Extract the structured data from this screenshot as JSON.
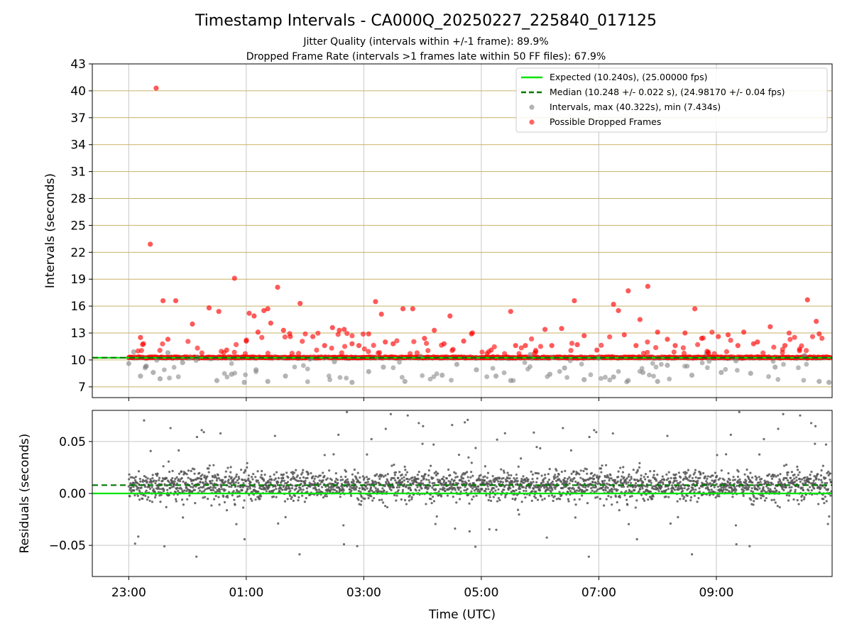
{
  "title": "Timestamp Intervals - CA000Q_20250227_225840_017125",
  "subtitle_1": "Jitter Quality (intervals within +/-1 frame): 89.9%",
  "subtitle_2": "Dropped Frame Rate (intervals >1 frames late within 50 FF files): 67.9%",
  "colors": {
    "expected": "#00e400",
    "median": "#007a00",
    "intervals": "#808080",
    "dropped": "#ff0000",
    "hgrid_top": "#c8b266",
    "grid": "#c8c8c8",
    "residuals": "#555555"
  },
  "chart_data": [
    {
      "type": "scatter",
      "panel": "top",
      "ylabel": "Intervals (seconds)",
      "ylim": [
        5.8,
        43
      ],
      "yticks": [
        7,
        10,
        13,
        16,
        19,
        22,
        25,
        28,
        31,
        34,
        37,
        40,
        43
      ],
      "xlim_hours": [
        22.38,
        10.97
      ],
      "grid": true,
      "legend_position": "top-right",
      "expected_value": 10.24,
      "median_value": 10.248,
      "legend": {
        "expected": "Expected (10.240s), (25.00000 fps)",
        "median": "Median (10.248 +/- 0.022 s), (24.98170 +/- 0.04 fps)",
        "intervals": "Intervals, max (40.322s), min (7.434s)",
        "dropped": "Possible Dropped Frames"
      },
      "series": [
        {
          "key": "intervals",
          "x": [
            "23:00",
            "23:05",
            "23:12",
            "23:18",
            "23:25",
            "23:32",
            "23:40",
            "23:55",
            "00:10",
            "00:30",
            "00:45",
            "00:58",
            "01:10",
            "01:22",
            "01:40",
            "02:05",
            "02:30",
            "02:48",
            "03:05",
            "03:20",
            "03:42",
            "03:58",
            "04:20",
            "04:35",
            "04:55",
            "05:15",
            "05:30",
            "05:50",
            "06:10",
            "06:25",
            "06:45",
            "07:00",
            "07:15",
            "07:30",
            "07:45",
            "08:00",
            "08:10",
            "08:35",
            "08:50",
            "09:05",
            "09:20",
            "09:35",
            "10:00",
            "10:30",
            "10:45",
            "10:55"
          ],
          "y": [
            9.6,
            10.9,
            8.2,
            9.3,
            8.6,
            7.9,
            10.8,
            9.7,
            10.3,
            7.7,
            8.4,
            7.5,
            8.9,
            7.6,
            8.2,
            10.1,
            9.8,
            7.5,
            8.7,
            9.2,
            7.6,
            10.4,
            8.3,
            9.5,
            8.9,
            8.2,
            7.7,
            10.6,
            8.4,
            9.1,
            7.8,
            10.2,
            8.1,
            7.7,
            8.6,
            7.6,
            9.4,
            8.3,
            10.7,
            8.6,
            9.9,
            8.5,
            9.2,
            10.5,
            7.6,
            7.5
          ]
        },
        {
          "key": "dropped",
          "x": [
            "23:12",
            "23:15",
            "23:22",
            "23:28",
            "23:35",
            "23:40",
            "23:48",
            "24:05",
            "00:22",
            "00:32",
            "00:40",
            "00:48",
            "01:00",
            "01:03",
            "01:08",
            "01:12",
            "01:18",
            "01:22",
            "01:25",
            "01:32",
            "01:38",
            "01:45",
            "01:55",
            "02:08",
            "02:20",
            "02:28",
            "02:35",
            "02:40",
            "02:48",
            "02:55",
            "03:05",
            "03:12",
            "03:18",
            "03:22",
            "03:30",
            "03:40",
            "03:50",
            "04:02",
            "04:12",
            "04:22",
            "04:28",
            "04:42",
            "04:50",
            "05:10",
            "05:30",
            "05:35",
            "05:45",
            "06:05",
            "06:12",
            "06:22",
            "06:35",
            "06:38",
            "06:45",
            "06:58",
            "07:15",
            "07:20",
            "07:26",
            "07:30",
            "07:38",
            "07:42",
            "07:50",
            "08:00",
            "08:10",
            "08:18",
            "08:28",
            "08:38",
            "08:45",
            "09:02",
            "09:12",
            "09:22",
            "09:28",
            "09:38",
            "09:42",
            "09:55",
            "10:10",
            "10:25",
            "10:33",
            "10:42",
            "10:45"
          ],
          "y": [
            12.5,
            11.8,
            22.9,
            40.3,
            16.6,
            12.3,
            16.6,
            14.0,
            15.8,
            15.4,
            11.1,
            19.1,
            12.1,
            15.2,
            14.9,
            13.1,
            15.5,
            15.7,
            14.1,
            18.1,
            13.3,
            12.6,
            16.3,
            12.6,
            11.6,
            13.6,
            13.3,
            13.4,
            11.8,
            11.6,
            12.9,
            16.5,
            15.1,
            12.0,
            11.8,
            15.7,
            15.7,
            12.4,
            13.3,
            11.8,
            14.9,
            12.1,
            12.9,
            11.1,
            15.4,
            11.6,
            11.6,
            13.4,
            11.6,
            13.5,
            16.6,
            11.7,
            12.7,
            11.1,
            16.2,
            15.5,
            12.8,
            17.7,
            11.6,
            14.5,
            18.2,
            13.1,
            12.3,
            11.6,
            13.0,
            15.7,
            12.4,
            12.6,
            12.8,
            11.6,
            13.1,
            11.8,
            12.0,
            13.7,
            11.6,
            11.2,
            16.7,
            14.3,
            12.9
          ]
        }
      ]
    },
    {
      "type": "scatter",
      "panel": "bottom",
      "xlabel": "Time (UTC)",
      "ylabel": "Residuals (seconds)",
      "ylim": [
        -0.08,
        0.08
      ],
      "yticks": [
        -0.05,
        0.0,
        0.05
      ],
      "ytick_labels": [
        "−0.05",
        "0.00",
        "0.05"
      ],
      "xticks": [
        "23:00",
        "01:00",
        "03:00",
        "05:00",
        "07:00",
        "09:00"
      ],
      "xlim_hours": [
        22.38,
        10.97
      ],
      "grid": true,
      "expected_value": 0.0,
      "median_value": 0.008,
      "residual_spread": 0.012
    }
  ]
}
